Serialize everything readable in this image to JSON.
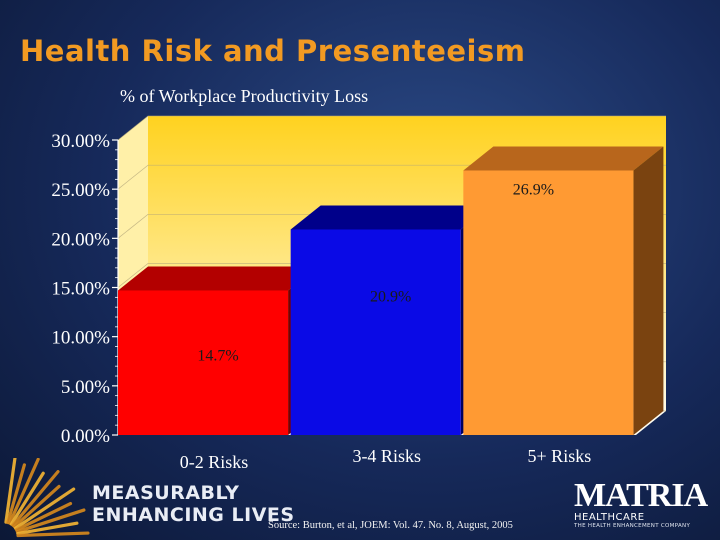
{
  "slide": {
    "title": "Health Risk and Presenteeism",
    "tagline_line1": "MEASURABLY",
    "tagline_line2": "ENHANCING LIVES",
    "source": "Source: Burton, et al, JOEM: Vol. 47. No. 8, August, 2005",
    "logo_name": "MATRIA",
    "logo_sub": "HEALTHCARE",
    "logo_tagline": "THE HEALTH ENHANCEMENT COMPANY"
  },
  "chart_data": {
    "type": "bar",
    "title": "% of Workplace Productivity Loss",
    "categories": [
      "0-2 Risks",
      "3-4 Risks",
      "5+ Risks"
    ],
    "values": [
      14.7,
      20.9,
      26.9
    ],
    "data_labels": [
      "14.7%",
      "20.9%",
      "26.9%"
    ],
    "ylim": [
      0,
      30
    ],
    "yticks": [
      0,
      5,
      10,
      15,
      20,
      25,
      30
    ],
    "ytick_labels": [
      "0.00%",
      "5.00%",
      "10.00%",
      "15.00%",
      "20.00%",
      "25.00%",
      "30.00%"
    ],
    "grid": true,
    "three_d": true,
    "bar_colors": [
      {
        "front": "#ff0000",
        "top": "#b30000",
        "side": "#7a0000"
      },
      {
        "front": "#0a0ae6",
        "top": "#00008a",
        "side": "#000060"
      },
      {
        "front": "#ff9a33",
        "top": "#b8661c",
        "side": "#7a4310"
      }
    ],
    "wall_colors": {
      "top": "#ffd21f",
      "bottom": "#fffbe8"
    }
  }
}
